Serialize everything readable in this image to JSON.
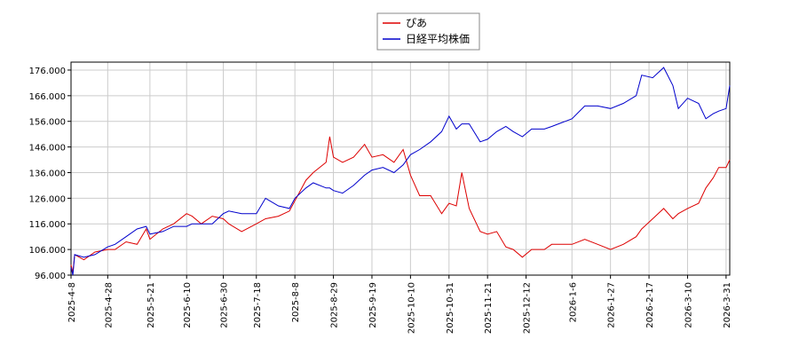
{
  "chart_data": {
    "type": "line",
    "x": [
      "2025-04-08",
      "2025-04-09",
      "2025-04-10",
      "2025-04-15",
      "2025-04-21",
      "2025-04-28",
      "2025-05-02",
      "2025-05-08",
      "2025-05-14",
      "2025-05-19",
      "2025-05-21",
      "2025-05-28",
      "2025-06-03",
      "2025-06-10",
      "2025-06-13",
      "2025-06-18",
      "2025-06-24",
      "2025-06-30",
      "2025-07-03",
      "2025-07-10",
      "2025-07-18",
      "2025-07-23",
      "2025-07-30",
      "2025-08-05",
      "2025-08-08",
      "2025-08-14",
      "2025-08-18",
      "2025-08-25",
      "2025-08-27",
      "2025-08-29",
      "2025-09-03",
      "2025-09-09",
      "2025-09-15",
      "2025-09-19",
      "2025-09-25",
      "2025-10-01",
      "2025-10-06",
      "2025-10-10",
      "2025-10-15",
      "2025-10-21",
      "2025-10-27",
      "2025-10-31",
      "2025-11-04",
      "2025-11-07",
      "2025-11-11",
      "2025-11-17",
      "2025-11-21",
      "2025-11-26",
      "2025-12-01",
      "2025-12-05",
      "2025-12-10",
      "2025-12-15",
      "2025-12-22",
      "2025-12-26",
      "2026-01-06",
      "2026-01-13",
      "2026-01-20",
      "2026-01-27",
      "2026-02-03",
      "2026-02-10",
      "2026-02-13",
      "2026-02-19",
      "2026-02-25",
      "2026-03-02",
      "2026-03-05",
      "2026-03-10",
      "2026-03-16",
      "2026-03-20",
      "2026-03-24",
      "2026-03-27",
      "2026-03-31",
      "2026-04-02"
    ],
    "series": [
      {
        "name": "ぴあ",
        "color": "#dd0000",
        "values": [
          100,
          97,
          104,
          102,
          105,
          106,
          106,
          109,
          108,
          114,
          110,
          114,
          116,
          120,
          119,
          116,
          119,
          118,
          116,
          113,
          116,
          118,
          119,
          121,
          125,
          133,
          136,
          140,
          150,
          142,
          140,
          142,
          147,
          142,
          143,
          140,
          145,
          135,
          127,
          127,
          120,
          124,
          123,
          136,
          122,
          113,
          112,
          113,
          107,
          106,
          103,
          106,
          106,
          108,
          108,
          110,
          108,
          106,
          108,
          111,
          114,
          118,
          122,
          118,
          120,
          122,
          124,
          130,
          134,
          138,
          138,
          141
        ]
      },
      {
        "name": "日経平均株価",
        "color": "#0000cc",
        "values": [
          99,
          96,
          104,
          103,
          104,
          107,
          108,
          111,
          114,
          115,
          112,
          113,
          115,
          115,
          116,
          116,
          116,
          120,
          121,
          120,
          120,
          126,
          123,
          122,
          126,
          130,
          132,
          130,
          130,
          129,
          128,
          131,
          135,
          137,
          138,
          136,
          139,
          143,
          145,
          148,
          152,
          158,
          153,
          155,
          155,
          148,
          149,
          152,
          154,
          152,
          150,
          153,
          153,
          154,
          157,
          162,
          162,
          161,
          163,
          166,
          174,
          173,
          177,
          170,
          161,
          165,
          163,
          157,
          159,
          160,
          161,
          170
        ]
      }
    ],
    "xlim": [
      "2025-04-08",
      "2026-04-02"
    ],
    "xticks": [
      "2025-4-8",
      "2025-4-28",
      "2025-5-21",
      "2025-6-10",
      "2025-6-30",
      "2025-7-18",
      "2025-8-8",
      "2025-8-29",
      "2025-9-19",
      "2025-10-10",
      "2025-10-31",
      "2025-11-21",
      "2025-12-12",
      "2026-1-6",
      "2026-1-27",
      "2026-2-17",
      "2026-3-10",
      "2026-3-31"
    ],
    "ylim": [
      96,
      179.1
    ],
    "yticks": [
      {
        "value": 96,
        "label": "96.000"
      },
      {
        "value": 106,
        "label": "106.000"
      },
      {
        "value": 116,
        "label": "116.000"
      },
      {
        "value": 126,
        "label": "126.000"
      },
      {
        "value": 136,
        "label": "136.000"
      },
      {
        "value": 146,
        "label": "146.000"
      },
      {
        "value": 156,
        "label": "156.000"
      },
      {
        "value": 166,
        "label": "166.000"
      },
      {
        "value": 176,
        "label": "176.000"
      }
    ],
    "grid": true,
    "legend": "top"
  }
}
